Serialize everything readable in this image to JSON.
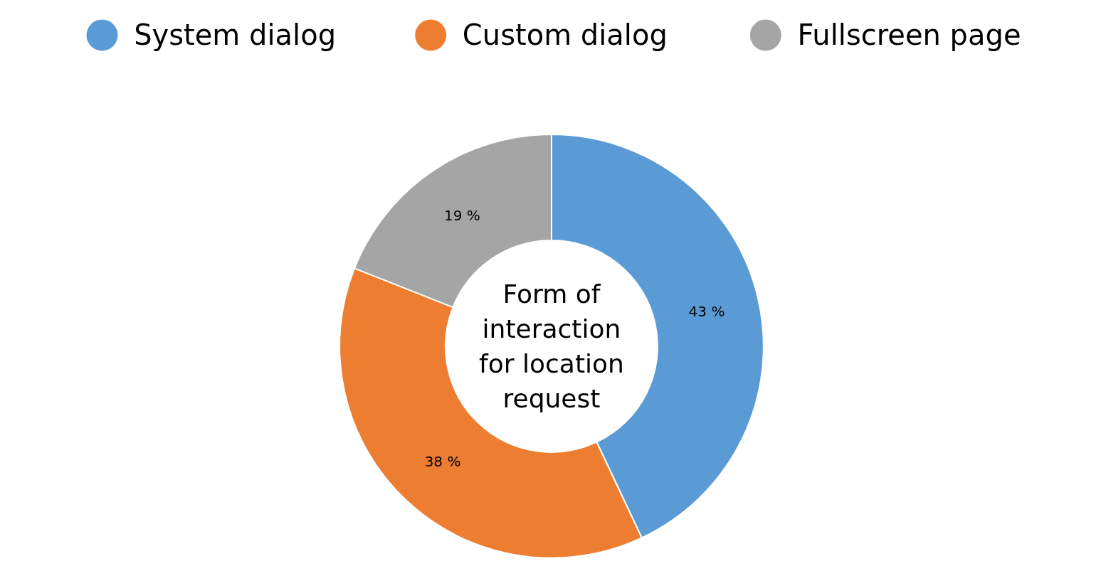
{
  "chart_data": {
    "type": "donut",
    "title": "Form of interaction for location request",
    "categories": [
      "System dialog",
      "Custom dialog",
      "Fullscreen page"
    ],
    "values": [
      43,
      38,
      19
    ],
    "colors": [
      "#5b9bd5",
      "#ed7d31",
      "#a5a5a5"
    ],
    "value_labels": [
      "43 %",
      "38 %",
      "19 %"
    ],
    "legend": "top"
  }
}
